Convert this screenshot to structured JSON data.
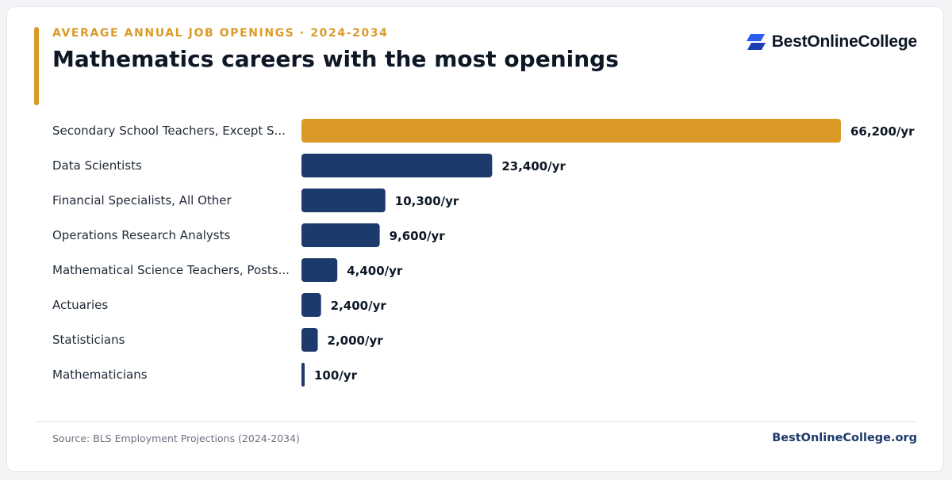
{
  "header": {
    "eyebrow": "AVERAGE ANNUAL JOB OPENINGS · 2024-2034",
    "title": "Mathematics careers with the most openings"
  },
  "brand": {
    "name": "BestOnlineCollege",
    "icon": "stacked-parallelogram-logo-icon"
  },
  "footer": {
    "source": "Source: BLS Employment Projections (2024-2034)",
    "site": "BestOnlineCollege.org"
  },
  "colors": {
    "accent": "#db9a27",
    "bar": "#1c3a6b",
    "title": "#0d1726",
    "brand_blue": "#2b5cf0"
  },
  "chart_data": {
    "type": "bar",
    "orientation": "horizontal",
    "categories": [
      "Secondary School Teachers, Except S...",
      "Data Scientists",
      "Financial Specialists, All Other",
      "Operations Research Analysts",
      "Mathematical Science Teachers, Posts...",
      "Actuaries",
      "Statisticians",
      "Mathematicians"
    ],
    "values": [
      66200,
      23400,
      10300,
      9600,
      4400,
      2400,
      2000,
      100
    ],
    "value_labels": [
      "66,200/yr",
      "23,400/yr",
      "10,300/yr",
      "9,600/yr",
      "4,400/yr",
      "2,400/yr",
      "2,000/yr",
      "100/yr"
    ],
    "unit": "/yr",
    "highlight_index": 0,
    "xlim": [
      0,
      66200
    ],
    "grid": false,
    "legend": "none"
  }
}
